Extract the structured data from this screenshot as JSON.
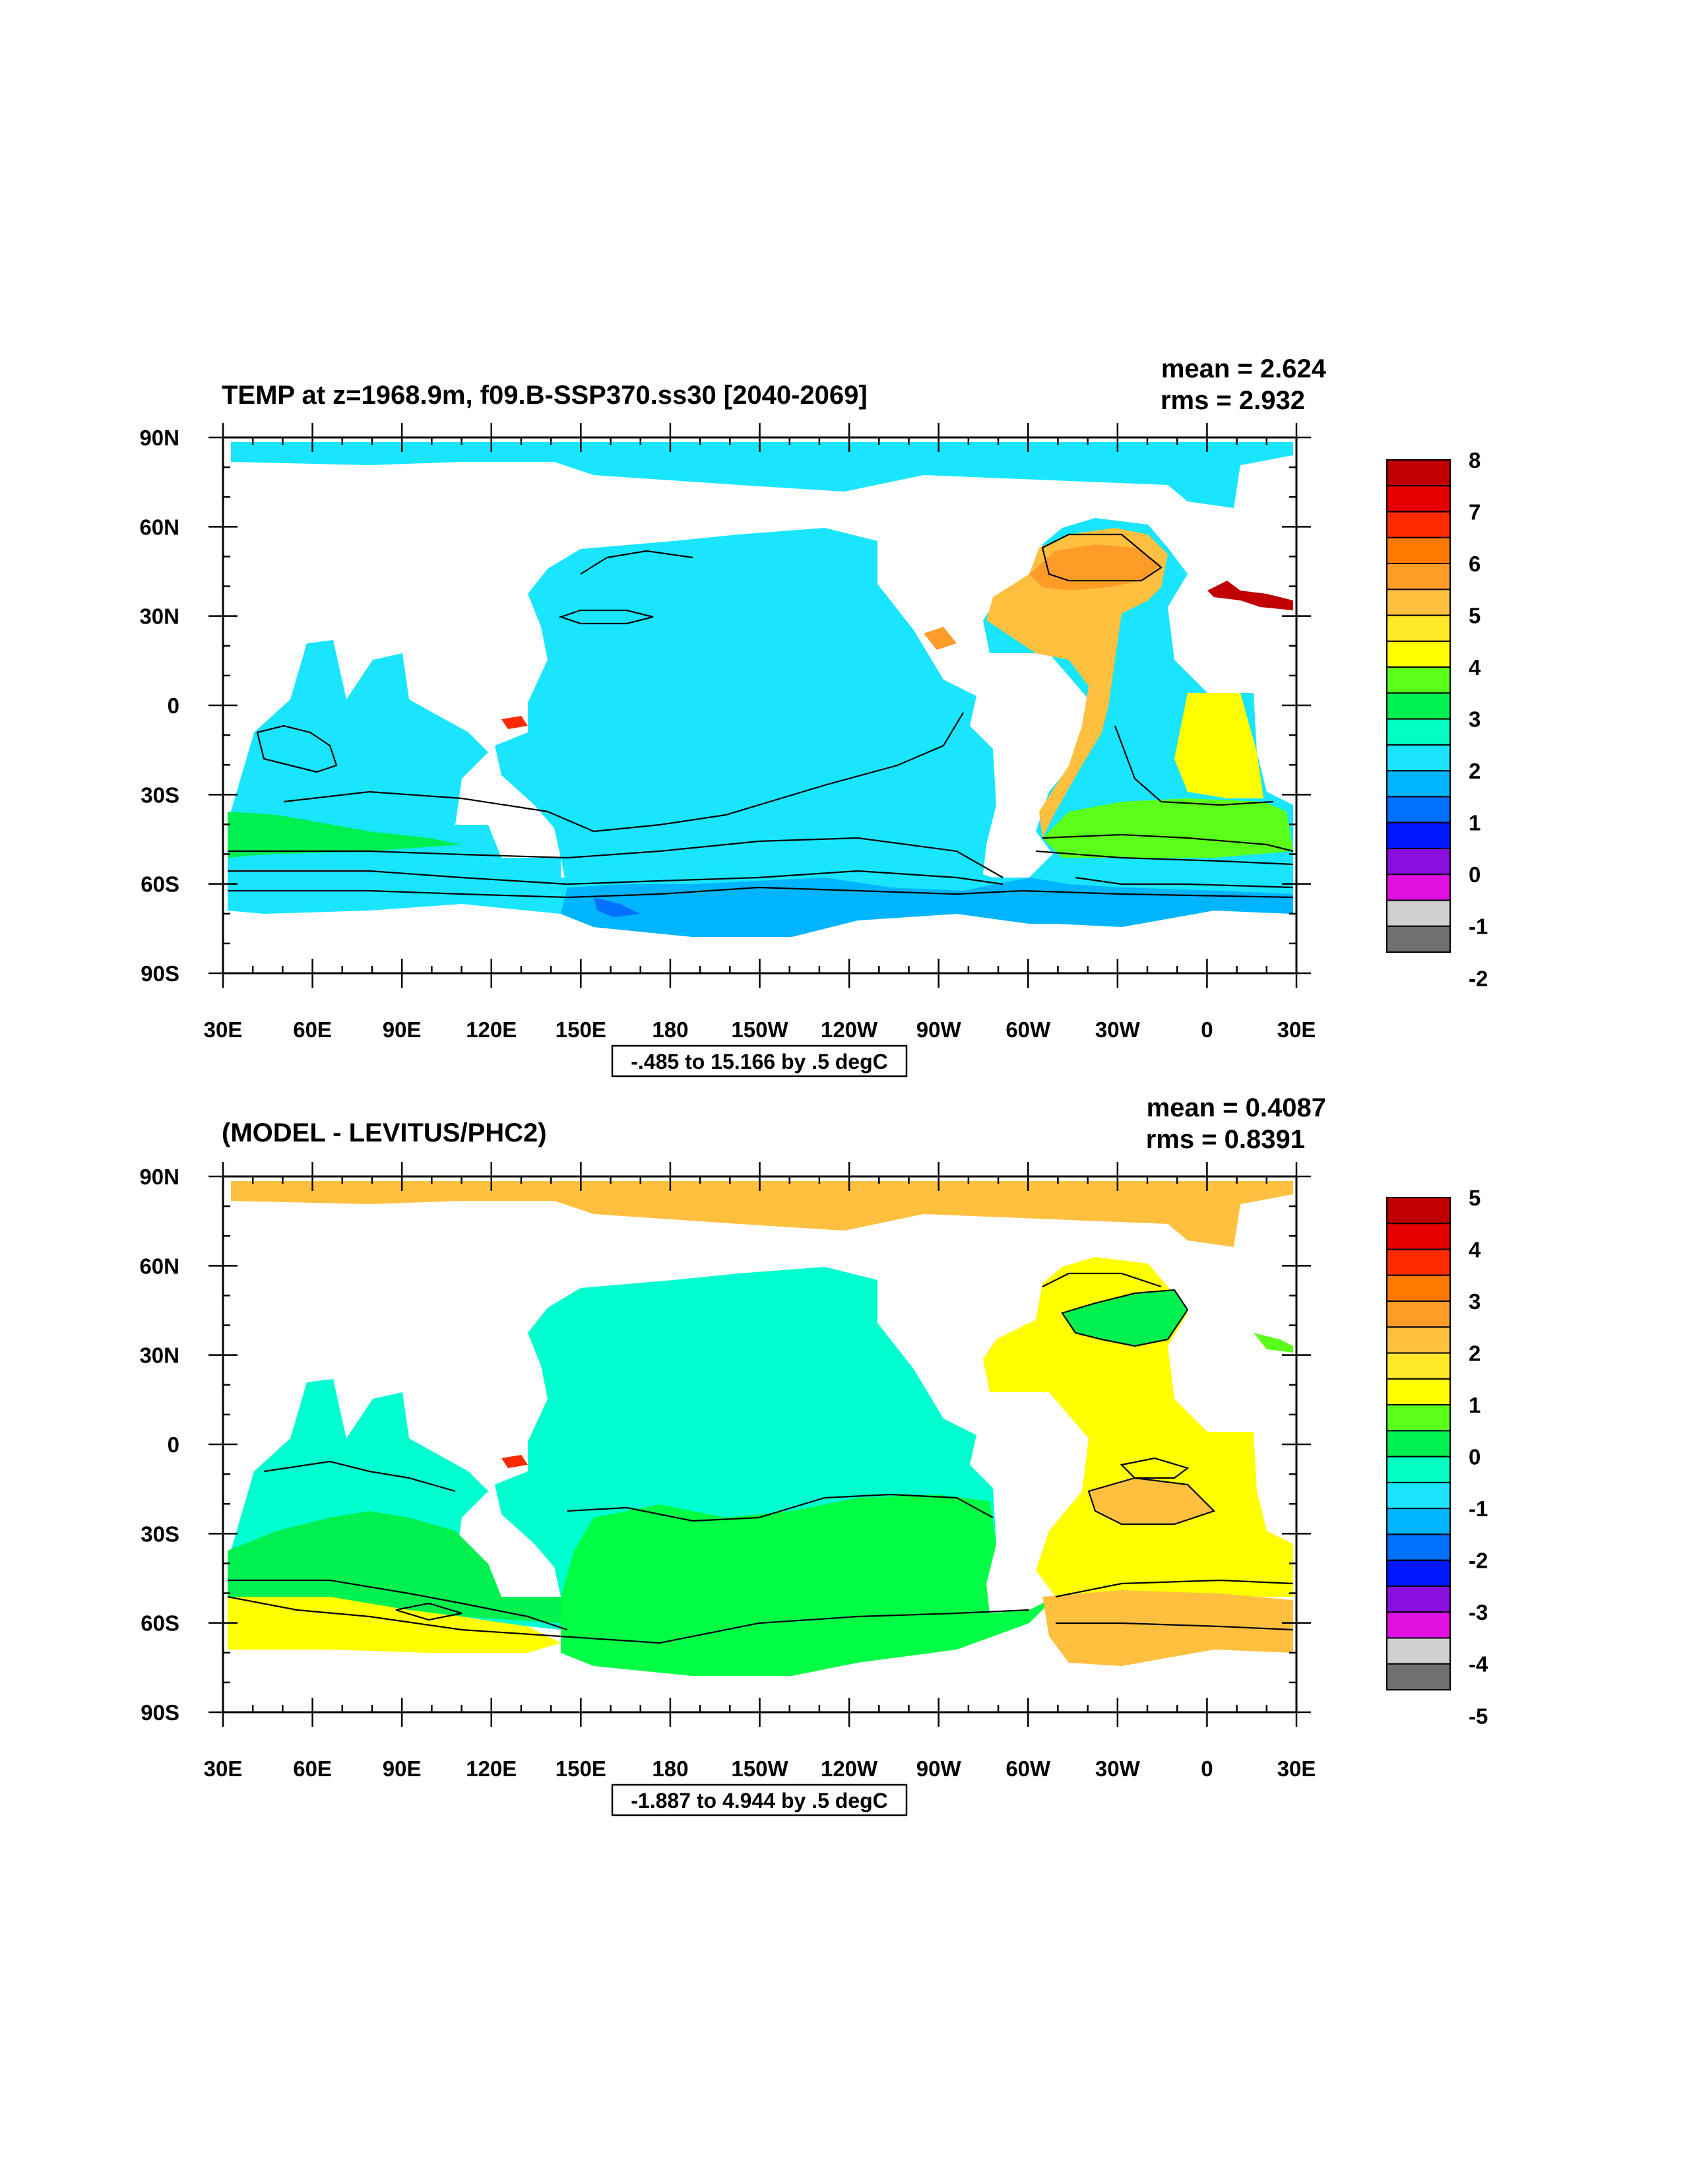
{
  "panels": [
    {
      "title": "TEMP at z=1968.9m, f09.B-SSP370.ss30 [2040-2069]",
      "mean_label": "mean = 2.624",
      "rms_label": "rms = 2.932",
      "contour_info": "-.485 to 15.166 by .5 degC",
      "ocean_color": "#19e5ff",
      "colorbar_labels": [
        "8",
        "7",
        "6",
        "5",
        "4",
        "3",
        "2",
        "1",
        "0",
        "-1",
        "-2"
      ]
    },
    {
      "title": "(MODEL - LEVITUS/PHC2)",
      "mean_label": "mean = 0.4087",
      "rms_label": "rms = 0.8391",
      "contour_info": "-1.887 to 4.944 by .5 degC",
      "ocean_color": "#00ffd0",
      "colorbar_labels": [
        "5",
        "4",
        "3",
        "2",
        "1",
        "0",
        "-1",
        "-2",
        "-3",
        "-4",
        "-5"
      ]
    }
  ],
  "lon_labels": [
    "30E",
    "60E",
    "90E",
    "120E",
    "150E",
    "180",
    "150W",
    "120W",
    "90W",
    "60W",
    "30W",
    "0",
    "30E"
  ],
  "lat_labels": [
    "90N",
    "60N",
    "30N",
    "0",
    "30S",
    "60S",
    "90S"
  ],
  "colorbar_colors": [
    "#c00000",
    "#e80000",
    "#ff2a00",
    "#ff7800",
    "#ff9c28",
    "#ffc040",
    "#ffe828",
    "#ffff00",
    "#5aff1a",
    "#00f050",
    "#00ffc0",
    "#19e5ff",
    "#00b4ff",
    "#0070ff",
    "#0018ff",
    "#8a10e0",
    "#e010e0",
    "#d0d0d0",
    "#707070"
  ]
}
